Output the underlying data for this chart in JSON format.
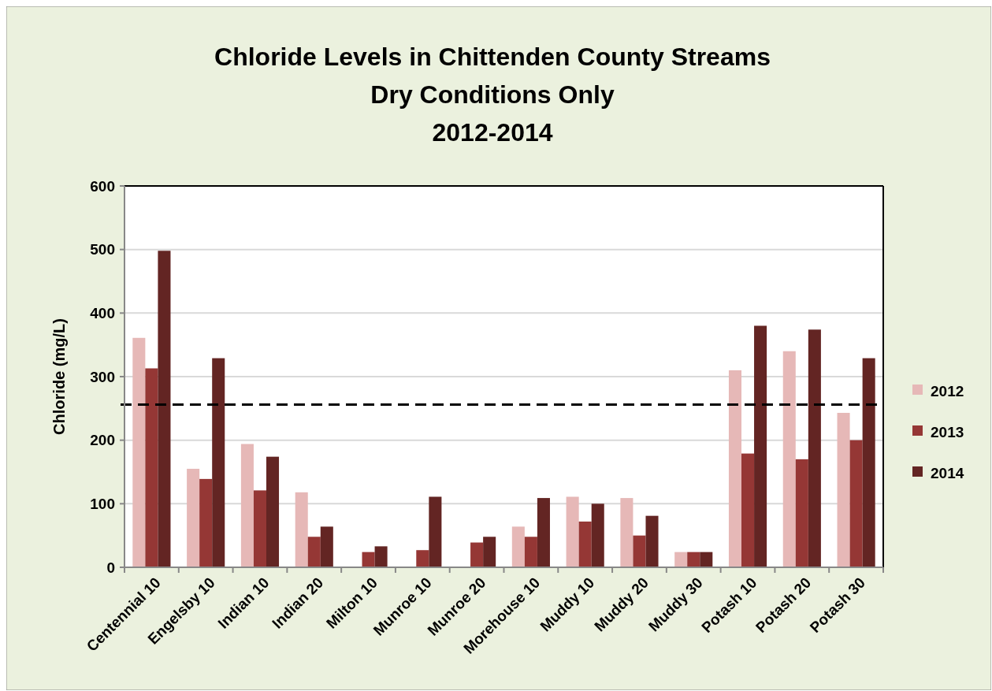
{
  "chart_data": {
    "type": "bar",
    "title": "Chloride Levels in Chittenden County Streams\nDry Conditions Only\n2012-2014",
    "ylabel": "Chloride (mg/L)",
    "categories": [
      "Centennial 10",
      "Engelsby 10",
      "Indian 10",
      "Indian 20",
      "Milton 10",
      "Munroe 10",
      "Munroe 20",
      "Morehouse 10",
      "Muddy 10",
      "Muddy 20",
      "Muddy 30",
      "Potash 10",
      "Potash 20",
      "Potash 30"
    ],
    "series": [
      {
        "name": "2012",
        "color": "#e6b8b7",
        "values": [
          361,
          155,
          194,
          118,
          null,
          null,
          null,
          64,
          111,
          109,
          24,
          310,
          340,
          243
        ]
      },
      {
        "name": "2013",
        "color": "#953735",
        "values": [
          313,
          139,
          121,
          48,
          24,
          27,
          39,
          48,
          72,
          50,
          24,
          179,
          170,
          200
        ]
      },
      {
        "name": "2014",
        "color": "#632523",
        "values": [
          498,
          329,
          174,
          64,
          33,
          111,
          48,
          109,
          100,
          81,
          24,
          380,
          374,
          329
        ]
      }
    ],
    "ylim": [
      0,
      600
    ],
    "yticks": [
      0,
      100,
      200,
      300,
      400,
      500,
      600
    ],
    "grid": "y",
    "legend": "right",
    "ref_lines": [
      {
        "axis": "y",
        "value": 256,
        "line_style": "dashed",
        "color": "#000000"
      }
    ]
  }
}
